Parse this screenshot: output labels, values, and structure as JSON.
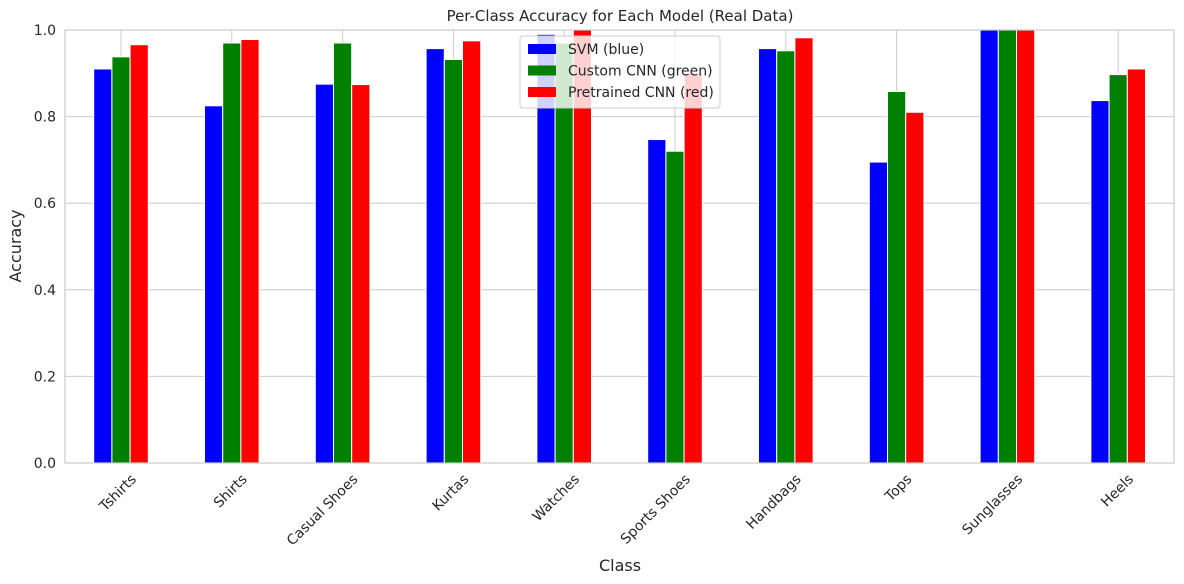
{
  "chart_data": {
    "type": "bar",
    "title": "Per-Class Accuracy for Each Model (Real Data)",
    "xlabel": "Class",
    "ylabel": "Accuracy",
    "ylim": [
      0,
      1
    ],
    "yticks": [
      "0.0",
      "0.2",
      "0.4",
      "0.6",
      "0.8",
      "1.0"
    ],
    "grid": true,
    "legend_position": "top-center",
    "categories": [
      "Tshirts",
      "Shirts",
      "Casual Shoes",
      "Kurtas",
      "Watches",
      "Sports Shoes",
      "Handbags",
      "Tops",
      "Sunglasses",
      "Heels"
    ],
    "series": [
      {
        "name": "SVM (blue)",
        "color": "#0000ff",
        "values": [
          0.91,
          0.825,
          0.875,
          0.957,
          0.99,
          0.747,
          0.957,
          0.695,
          1.0,
          0.837
        ]
      },
      {
        "name": "Custom CNN (green)",
        "color": "#008000",
        "values": [
          0.938,
          0.97,
          0.97,
          0.932,
          0.97,
          0.72,
          0.952,
          0.858,
          1.0,
          0.897
        ]
      },
      {
        "name": "Pretrained CNN (red)",
        "color": "#ff0000",
        "values": [
          0.966,
          0.978,
          0.874,
          0.975,
          1.0,
          0.9,
          0.982,
          0.81,
          1.0,
          0.91
        ]
      }
    ]
  }
}
